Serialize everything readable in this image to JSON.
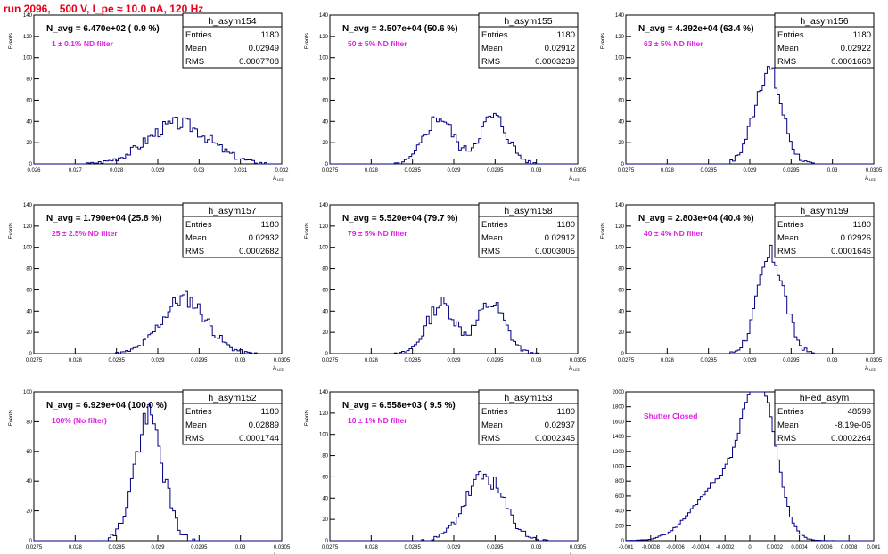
{
  "header": {
    "title": "run 2096,   500 V, I_pe ≈ 10.0 nA, 120 Hz"
  },
  "colors": {
    "histogram": "#000080",
    "title": "#e8001c",
    "filter_note": "#e020e0",
    "frame": "#000000"
  },
  "chart_data": [
    {
      "type": "histogram",
      "name": "h_asym154",
      "navg": "N_avg = 6.470e+02 ( 0.9 %)",
      "note": "1 ± 0.1% ND filter",
      "entries": "1180",
      "mean": "0.02949",
      "rms": "0.0007708",
      "ylabel": "Events",
      "xlabel": "A_LED",
      "xlim": [
        0.026,
        0.032
      ],
      "ylim": [
        0,
        140
      ],
      "xticks": [
        "0.026",
        "0.027",
        "0.028",
        "0.029",
        "0.03",
        "0.031",
        "0.032"
      ],
      "yticks": [
        "0",
        "20",
        "40",
        "60",
        "80",
        "100",
        "120",
        "140"
      ],
      "curve": {
        "kind": "gauss",
        "mu": 0.0295,
        "sigma": 0.00075,
        "peak": 38,
        "seed": 3
      }
    },
    {
      "type": "histogram",
      "name": "h_asym155",
      "navg": "N_avg = 3.507e+04 (50.6 %)",
      "note": "50 ± 5% ND filter",
      "entries": "1180",
      "mean": "0.02912",
      "rms": "0.0003239",
      "ylabel": "Events",
      "xlabel": "A_LED",
      "xlim": [
        0.0275,
        0.0305
      ],
      "ylim": [
        0,
        140
      ],
      "xticks": [
        "0.0275",
        "0.028",
        "0.0285",
        "0.029",
        "0.0295",
        "0.03",
        "0.0305"
      ],
      "yticks": [
        "0",
        "20",
        "40",
        "60",
        "80",
        "100",
        "120",
        "140"
      ],
      "curve": {
        "kind": "double",
        "mu1": 0.02882,
        "mu2": 0.02948,
        "sigma": 0.00017,
        "peak": 44,
        "seed": 5
      }
    },
    {
      "type": "histogram",
      "name": "h_asym156",
      "navg": "N_avg = 4.392e+04 (63.4 %)",
      "note": "63 ± 5% ND filter",
      "entries": "1180",
      "mean": "0.02922",
      "rms": "0.0001668",
      "ylabel": "Events",
      "xlabel": "A_LED",
      "xlim": [
        0.0275,
        0.0305
      ],
      "ylim": [
        0,
        140
      ],
      "xticks": [
        "0.0275",
        "0.028",
        "0.0285",
        "0.029",
        "0.0295",
        "0.03",
        "0.0305"
      ],
      "yticks": [
        "0",
        "20",
        "40",
        "60",
        "80",
        "100",
        "120",
        "140"
      ],
      "curve": {
        "kind": "gauss",
        "mu": 0.02922,
        "sigma": 0.000165,
        "peak": 88,
        "seed": 7
      }
    },
    {
      "type": "histogram",
      "name": "h_asym157",
      "navg": "N_avg = 1.790e+04 (25.8 %)",
      "note": "25 ± 2.5% ND filter",
      "entries": "1180",
      "mean": "0.02932",
      "rms": "0.0002682",
      "ylabel": "Events",
      "xlabel": "A_LED",
      "xlim": [
        0.0275,
        0.0305
      ],
      "ylim": [
        0,
        140
      ],
      "xticks": [
        "0.0275",
        "0.028",
        "0.0285",
        "0.029",
        "0.0295",
        "0.03",
        "0.0305"
      ],
      "yticks": [
        "0",
        "20",
        "40",
        "60",
        "80",
        "100",
        "120",
        "140"
      ],
      "curve": {
        "kind": "gauss",
        "mu": 0.02932,
        "sigma": 0.00027,
        "peak": 52,
        "seed": 11
      }
    },
    {
      "type": "histogram",
      "name": "h_asym158",
      "navg": "N_avg = 5.520e+04 (79.7 %)",
      "note": "79 ± 5% ND filter",
      "entries": "1180",
      "mean": "0.02912",
      "rms": "0.0003005",
      "ylabel": "Events",
      "xlabel": "A_LED",
      "xlim": [
        0.0275,
        0.0305
      ],
      "ylim": [
        0,
        140
      ],
      "xticks": [
        "0.0275",
        "0.028",
        "0.0285",
        "0.029",
        "0.0295",
        "0.03",
        "0.0305"
      ],
      "yticks": [
        "0",
        "20",
        "40",
        "60",
        "80",
        "100",
        "120",
        "140"
      ],
      "curve": {
        "kind": "double",
        "mu1": 0.02885,
        "mu2": 0.02945,
        "sigma": 0.00017,
        "peak": 47,
        "seed": 13
      }
    },
    {
      "type": "histogram",
      "name": "h_asym159",
      "navg": "N_avg = 2.803e+04 (40.4 %)",
      "note": "40 ± 4% ND filter",
      "entries": "1180",
      "mean": "0.02926",
      "rms": "0.0001646",
      "ylabel": "Events",
      "xlabel": "A_LED",
      "xlim": [
        0.0275,
        0.0305
      ],
      "ylim": [
        0,
        140
      ],
      "xticks": [
        "0.0275",
        "0.028",
        "0.0285",
        "0.029",
        "0.0295",
        "0.03",
        "0.0305"
      ],
      "yticks": [
        "0",
        "20",
        "40",
        "60",
        "80",
        "100",
        "120",
        "140"
      ],
      "curve": {
        "kind": "gauss",
        "mu": 0.02926,
        "sigma": 0.000162,
        "peak": 92,
        "seed": 17
      }
    },
    {
      "type": "histogram",
      "name": "h_asym152",
      "navg": "N_avg = 6.929e+04 (100.0 %)",
      "note": "100% (No filter)",
      "entries": "1180",
      "mean": "0.02889",
      "rms": "0.0001744",
      "ylabel": "Events",
      "xlabel": "A_LED",
      "xlim": [
        0.0275,
        0.0305
      ],
      "ylim": [
        0,
        100
      ],
      "xticks": [
        "0.0275",
        "0.028",
        "0.0285",
        "0.029",
        "0.0295",
        "0.03",
        "0.0305"
      ],
      "yticks": [
        "0",
        "20",
        "40",
        "60",
        "80",
        "100"
      ],
      "curve": {
        "kind": "gauss",
        "mu": 0.02889,
        "sigma": 0.000172,
        "peak": 82,
        "seed": 19
      }
    },
    {
      "type": "histogram",
      "name": "h_asym153",
      "navg": "N_avg = 6.558e+03 ( 9.5 %)",
      "note": "10 ± 1% ND filter",
      "entries": "1180",
      "mean": "0.02937",
      "rms": "0.0002345",
      "ylabel": "Events",
      "xlabel": "A_LED",
      "xlim": [
        0.0275,
        0.0305
      ],
      "ylim": [
        0,
        140
      ],
      "xticks": [
        "0.0275",
        "0.028",
        "0.0285",
        "0.029",
        "0.0295",
        "0.03",
        "0.0305"
      ],
      "yticks": [
        "0",
        "20",
        "40",
        "60",
        "80",
        "100",
        "120",
        "140"
      ],
      "curve": {
        "kind": "gauss",
        "mu": 0.02937,
        "sigma": 0.000235,
        "peak": 60,
        "seed": 23
      }
    },
    {
      "type": "histogram",
      "name": "hPed_asym",
      "navg": "",
      "note": "Shutter Closed",
      "entries": "48599",
      "mean": "-8.19e-06",
      "rms": "0.0002264",
      "ylabel": "",
      "xlabel": "",
      "xlim": [
        -0.001,
        0.001
      ],
      "ylim": [
        0,
        2000
      ],
      "xticks": [
        "-0.001",
        "-0.0008",
        "-0.0006",
        "-0.0004",
        "-0.0002",
        "0",
        "0.0002",
        "0.0004",
        "0.0006",
        "0.0008",
        "0.001"
      ],
      "yticks": [
        "0",
        "200",
        "400",
        "600",
        "800",
        "1000",
        "1200",
        "1400",
        "1600",
        "1800",
        "2000"
      ],
      "curve": {
        "kind": "ped",
        "peak": 1900,
        "seed": 29
      }
    }
  ]
}
